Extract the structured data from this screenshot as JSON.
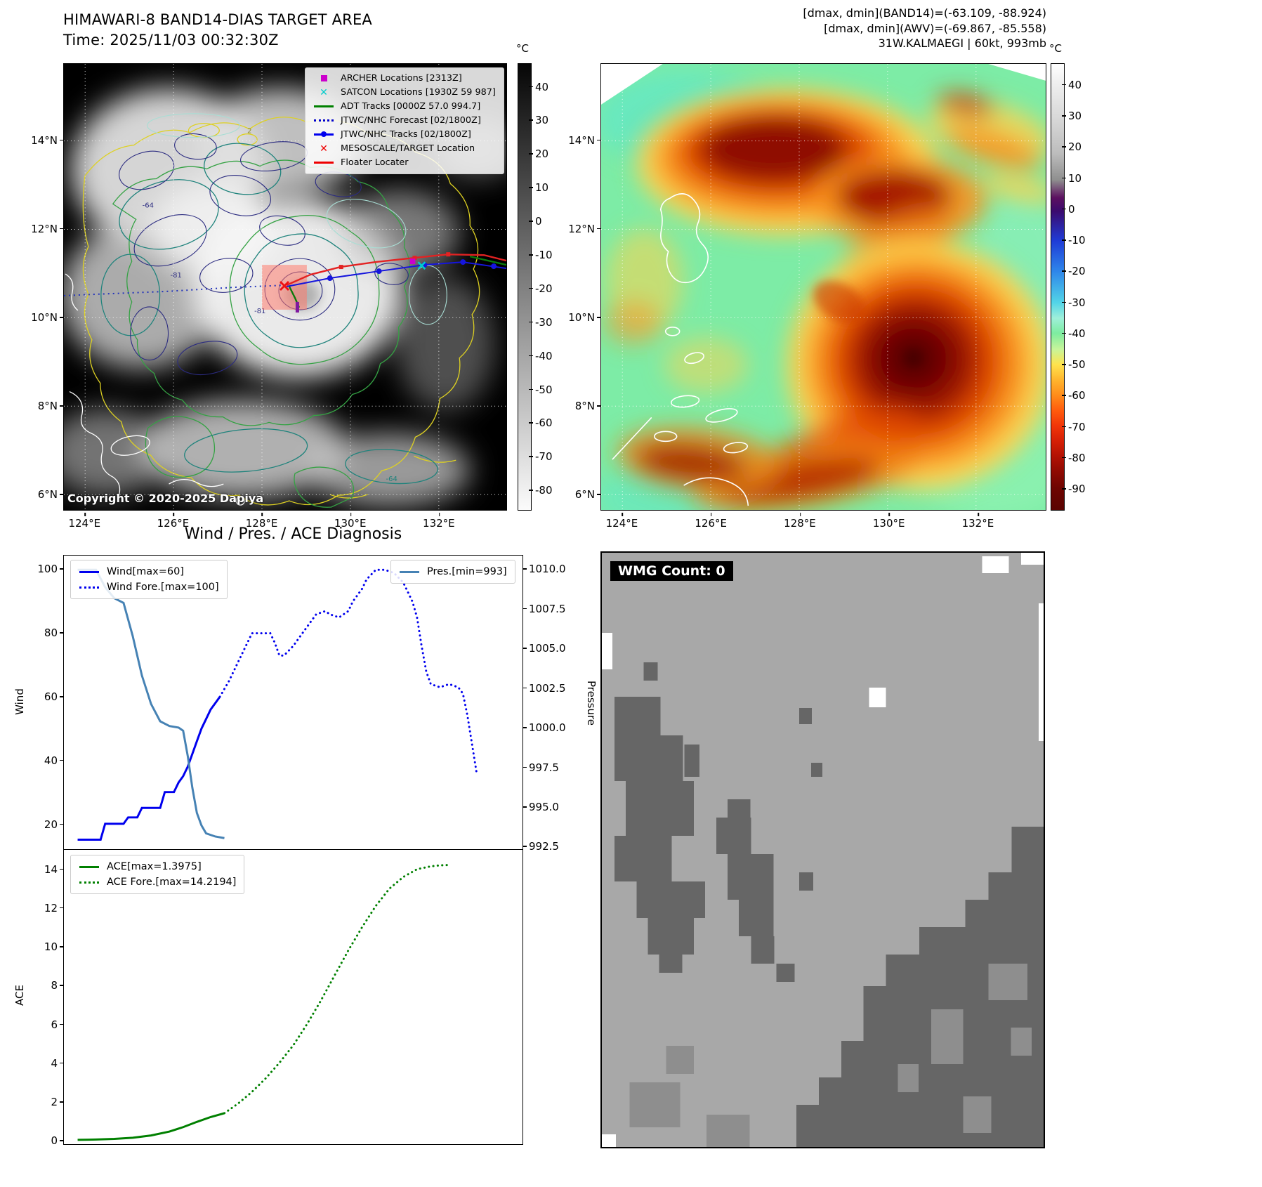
{
  "band14_panel": {
    "title": "HIMAWARI-8 BAND14-DIAS TARGET AREA",
    "time": "Time: 2025/11/03 00:32:30Z",
    "copyright": "Copyright © 2020-2025 Dapiya",
    "colorbar": {
      "unit": "°C",
      "min": -86,
      "max": 47,
      "values": [
        40,
        30,
        20,
        10,
        0,
        -10,
        -20,
        -30,
        -40,
        -50,
        -60,
        -70,
        -80
      ],
      "labels": [
        "40",
        "30",
        "20",
        "10",
        "0",
        "-10",
        "-20",
        "-30",
        "-40",
        "-50",
        "-60",
        "-70",
        "-80"
      ]
    },
    "lat_axis": {
      "min": 5.64,
      "max": 15.74,
      "values": [
        14,
        12,
        10,
        8,
        6
      ],
      "labels": [
        "14°N",
        "12°N",
        "10°N",
        "8°N",
        "6°N"
      ]
    },
    "lon_axis": {
      "min": 123.52,
      "max": 133.54,
      "values": [
        124,
        126,
        128,
        130,
        132
      ],
      "labels": [
        "124°E",
        "126°E",
        "128°E",
        "130°E",
        "132°E"
      ]
    },
    "legend": [
      {
        "label": "ARCHER Locations [2313Z]",
        "marker": "square",
        "color": "#cc00cc"
      },
      {
        "label": "SATCON Locations [1930Z 59 987]",
        "marker": "x",
        "color": "#00cccc"
      },
      {
        "label": "ADT Tracks [0000Z 57.0 994.7]",
        "marker": "line",
        "color": "#008000"
      },
      {
        "label": "JTWC/NHC Forecast [02/1800Z]",
        "marker": "dotted",
        "color": "#0000cd"
      },
      {
        "label": "JTWC/NHC Tracks [02/1800Z]",
        "marker": "line-dot",
        "color": "#0000ee"
      },
      {
        "label": "MESOSCALE/TARGET Location",
        "marker": "x",
        "color": "#ee0000"
      },
      {
        "label": "Floater Locater",
        "marker": "line",
        "color": "#ee0000"
      }
    ],
    "contour_labels": [
      "-64",
      "2",
      "-81",
      "-81",
      "-64"
    ]
  },
  "awv_panel": {
    "header_lines": [
      "[dmax, dmin](BAND14)=(-63.109, -88.924)",
      "[dmax, dmin](AWV)=(-69.867, -85.558)",
      "31W.KALMAEGI | 60kt, 993mb"
    ],
    "colorbar": {
      "unit": "°C",
      "min": -97,
      "max": 47,
      "values": [
        40,
        30,
        20,
        10,
        0,
        -10,
        -20,
        -30,
        -40,
        -50,
        -60,
        -70,
        -80,
        -90
      ],
      "labels": [
        "40",
        "30",
        "20",
        "10",
        "0",
        "-10",
        "-20",
        "-30",
        "-40",
        "-50",
        "-60",
        "-70",
        "-80",
        "-90"
      ]
    },
    "lat_axis": {
      "min": 5.64,
      "max": 15.74,
      "values": [
        14,
        12,
        10,
        8,
        6
      ],
      "labels": [
        "14°N",
        "12°N",
        "10°N",
        "8°N",
        "6°N"
      ]
    },
    "lon_axis": {
      "min": 123.52,
      "max": 133.54,
      "values": [
        124,
        126,
        128,
        130,
        132
      ],
      "labels": [
        "124°E",
        "126°E",
        "128°E",
        "130°E",
        "132°E"
      ]
    }
  },
  "diagnosis": {
    "title": "Wind / Pres. / ACE Diagnosis"
  },
  "wmg_panel": {
    "count_label": "WMG Count: 0"
  },
  "chart_data": [
    {
      "type": "line",
      "title": "Wind / Pres. / ACE Diagnosis",
      "x_min": 0,
      "x_max": 100,
      "left_axis": {
        "label": "Wind",
        "min": 12,
        "max": 104.5,
        "values": [
          20,
          40,
          60,
          80,
          100
        ],
        "labels": [
          "20",
          "40",
          "60",
          "80",
          "100"
        ]
      },
      "right_axis": {
        "label": "Pressure",
        "min": 992.3,
        "max": 1010.9,
        "values": [
          992.5,
          995.0,
          997.5,
          1000.0,
          1002.5,
          1005.0,
          1007.5,
          1010.0
        ],
        "labels": [
          "992.5",
          "995.0",
          "997.5",
          "1000.0",
          "1002.5",
          "1005.0",
          "1007.5",
          "1010.0"
        ]
      },
      "series": [
        {
          "name": "Wind[max=60]",
          "axis": "left",
          "color": "#0000ee",
          "style": "solid",
          "x": [
            3,
            8,
            9,
            13,
            14,
            16,
            17,
            21,
            22,
            24,
            25,
            26,
            27,
            28,
            29,
            30,
            31,
            32,
            33,
            34
          ],
          "y": [
            15,
            15,
            20,
            20,
            22,
            22,
            25,
            25,
            30,
            30,
            33,
            35,
            38,
            42,
            46,
            50,
            53,
            56,
            58,
            60
          ]
        },
        {
          "name": "Wind Fore.[max=100]",
          "axis": "left",
          "color": "#0000ee",
          "style": "dotted",
          "x": [
            34,
            36,
            38,
            40,
            41,
            43,
            45,
            46,
            47,
            48,
            50,
            52,
            54,
            55,
            57,
            58,
            60,
            62,
            63,
            65,
            66,
            68,
            70,
            72,
            74,
            75,
            76,
            77,
            78,
            79,
            80,
            82,
            84,
            86,
            87,
            88,
            89,
            90
          ],
          "y": [
            60,
            65,
            71,
            77,
            80,
            80,
            80,
            77,
            73,
            73,
            76,
            80,
            84,
            86,
            87,
            86,
            85,
            87,
            90,
            94,
            97,
            100,
            100,
            99,
            96,
            93,
            90,
            85,
            76,
            68,
            64,
            63,
            64,
            63,
            61,
            54,
            45,
            36
          ]
        },
        {
          "name": "Pres.[min=993]",
          "axis": "right",
          "color": "#4682b4",
          "style": "solid",
          "x": [
            3,
            7,
            9,
            11,
            13,
            15,
            17,
            19,
            21,
            23,
            25,
            26,
            27,
            28,
            29,
            30,
            31,
            33,
            35
          ],
          "y": [
            1010,
            1010,
            1008.9,
            1008.2,
            1007.9,
            1005.8,
            1003.3,
            1001.5,
            1000.4,
            1000.1,
            1000.0,
            999.8,
            998.2,
            996.2,
            994.6,
            993.8,
            993.3,
            993.1,
            993.0
          ]
        }
      ]
    },
    {
      "type": "line",
      "x_min": 0,
      "x_max": 100,
      "left_axis": {
        "label": "ACE",
        "min": -0.2,
        "max": 15.0,
        "values": [
          0,
          2,
          4,
          6,
          8,
          10,
          12,
          14
        ],
        "labels": [
          "0",
          "2",
          "4",
          "6",
          "8",
          "10",
          "12",
          "14"
        ]
      },
      "series": [
        {
          "name": "ACE[max=1.3975]",
          "axis": "left",
          "color": "#008000",
          "style": "solid",
          "x": [
            3,
            7,
            11,
            15,
            19,
            23,
            26,
            29,
            32,
            35
          ],
          "y": [
            0.02,
            0.04,
            0.07,
            0.13,
            0.25,
            0.45,
            0.68,
            0.95,
            1.2,
            1.4
          ]
        },
        {
          "name": "ACE Fore.[max=14.2194]",
          "axis": "left",
          "color": "#008000",
          "style": "dotted",
          "x": [
            35,
            38,
            41,
            44,
            47,
            50,
            53,
            56,
            59,
            62,
            65,
            68,
            71,
            74,
            77,
            80,
            82,
            84
          ],
          "y": [
            1.4,
            1.9,
            2.5,
            3.2,
            4.0,
            4.9,
            6.0,
            7.2,
            8.5,
            9.8,
            11.0,
            12.1,
            13.0,
            13.6,
            14.0,
            14.15,
            14.2,
            14.22
          ]
        }
      ]
    }
  ]
}
